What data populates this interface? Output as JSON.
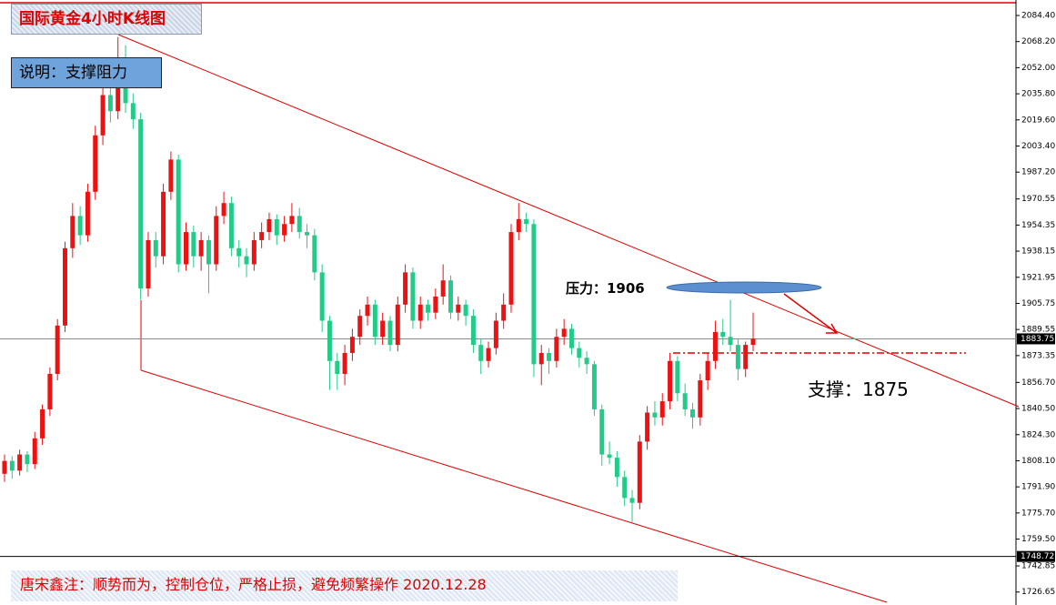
{
  "chart_data": {
    "type": "candlestick",
    "title": "国际黄金4小时K线图",
    "note": "说明：支撑阻力",
    "footer": "唐宋鑫注：顺势而为，控制仓位，严格止损，避免频繁操作  2020.12.28",
    "resistance": {
      "label": "压力：1906",
      "value": 1906
    },
    "support": {
      "label": "支撑：1875",
      "value": 1875
    },
    "last_price": 1883.75,
    "panel_line": 1748.72,
    "up_color": "#ee1111",
    "down_color": "#22cc88",
    "ylim": [
      1718.6,
      2094.0
    ],
    "yticks": [
      {
        "value": 2084.4,
        "label": "2084.40"
      },
      {
        "value": 2068.2,
        "label": "2068.20"
      },
      {
        "value": 2052,
        "label": "2052.00"
      },
      {
        "value": 2035.8,
        "label": "2035.80"
      },
      {
        "value": 2019.6,
        "label": "2019.60"
      },
      {
        "value": 2003.4,
        "label": "2003.40"
      },
      {
        "value": 1987.2,
        "label": "1987.20"
      },
      1970.55,
      1954.35,
      1938.15,
      1921.95,
      1905.75,
      1889.55,
      1873.35,
      {
        "value": 1856.7,
        "label": "1856.70"
      },
      {
        "value": 1840.5,
        "label": "1840.50"
      },
      {
        "value": 1824.3,
        "label": "1824.30"
      },
      {
        "value": 1808.1,
        "label": "1808.10"
      },
      {
        "value": 1791.9,
        "label": "1791.90"
      },
      {
        "value": 1775.7,
        "label": "1775.70"
      },
      {
        "value": 1759.5,
        "label": "1759.50"
      },
      1742.85,
      1726.65
    ],
    "ohlc": [
      [
        1800,
        1812,
        1795,
        1808
      ],
      [
        1808,
        1811,
        1797,
        1802
      ],
      [
        1802,
        1815,
        1799,
        1812
      ],
      [
        1812,
        1814,
        1801,
        1806
      ],
      [
        1806,
        1826,
        1803,
        1822
      ],
      [
        1822,
        1843,
        1818,
        1840
      ],
      [
        1840,
        1866,
        1836,
        1862
      ],
      [
        1862,
        1896,
        1858,
        1892
      ],
      [
        1892,
        1944,
        1888,
        1940
      ],
      [
        1940,
        1968,
        1934,
        1960
      ],
      [
        1960,
        1966,
        1942,
        1948
      ],
      [
        1948,
        1980,
        1944,
        1975
      ],
      [
        1975,
        2016,
        1970,
        2010
      ],
      [
        2010,
        2042,
        2004,
        2035
      ],
      [
        2035,
        2040,
        2018,
        2025
      ],
      [
        2025,
        2071,
        2020,
        2050
      ],
      [
        2050,
        2066,
        2024,
        2030
      ],
      [
        2030,
        2036,
        2014,
        2020
      ],
      [
        2020,
        2024,
        1908,
        1915
      ],
      [
        1915,
        1950,
        1910,
        1945
      ],
      [
        1945,
        1950,
        1928,
        1935
      ],
      [
        1935,
        1980,
        1930,
        1975
      ],
      [
        1975,
        2000,
        1970,
        1995
      ],
      [
        1995,
        1998,
        1925,
        1930
      ],
      [
        1930,
        1956,
        1926,
        1950
      ],
      [
        1950,
        1954,
        1928,
        1935
      ],
      [
        1935,
        1950,
        1926,
        1945
      ],
      [
        1945,
        1948,
        1912,
        1930
      ],
      [
        1930,
        1966,
        1926,
        1960
      ],
      [
        1960,
        1975,
        1955,
        1968
      ],
      [
        1968,
        1972,
        1935,
        1940
      ],
      [
        1940,
        1945,
        1928,
        1935
      ],
      [
        1935,
        1940,
        1922,
        1930
      ],
      [
        1930,
        1950,
        1926,
        1945
      ],
      [
        1945,
        1956,
        1940,
        1950
      ],
      [
        1950,
        1962,
        1945,
        1958
      ],
      [
        1958,
        1961,
        1942,
        1948
      ],
      [
        1948,
        1960,
        1944,
        1955
      ],
      [
        1955,
        1968,
        1950,
        1960
      ],
      [
        1960,
        1965,
        1946,
        1950
      ],
      [
        1950,
        1955,
        1940,
        1948
      ],
      [
        1948,
        1952,
        1920,
        1925
      ],
      [
        1925,
        1930,
        1888,
        1895
      ],
      [
        1895,
        1898,
        1852,
        1870
      ],
      [
        1870,
        1875,
        1852,
        1862
      ],
      [
        1862,
        1880,
        1855,
        1875
      ],
      [
        1875,
        1890,
        1870,
        1885
      ],
      [
        1885,
        1902,
        1880,
        1898
      ],
      [
        1898,
        1910,
        1892,
        1905
      ],
      [
        1905,
        1908,
        1880,
        1885
      ],
      [
        1885,
        1900,
        1880,
        1895
      ],
      [
        1895,
        1898,
        1876,
        1880
      ],
      [
        1880,
        1910,
        1876,
        1905
      ],
      [
        1905,
        1930,
        1900,
        1925
      ],
      [
        1925,
        1928,
        1890,
        1895
      ],
      [
        1895,
        1910,
        1890,
        1905
      ],
      [
        1905,
        1908,
        1895,
        1900
      ],
      [
        1900,
        1915,
        1896,
        1910
      ],
      [
        1910,
        1930,
        1905,
        1920
      ],
      [
        1920,
        1923,
        1896,
        1900
      ],
      [
        1900,
        1910,
        1895,
        1905
      ],
      [
        1905,
        1908,
        1892,
        1898
      ],
      [
        1898,
        1902,
        1875,
        1880
      ],
      [
        1880,
        1884,
        1862,
        1870
      ],
      [
        1870,
        1882,
        1866,
        1878
      ],
      [
        1878,
        1900,
        1874,
        1895
      ],
      [
        1895,
        1912,
        1890,
        1905
      ],
      [
        1905,
        1955,
        1900,
        1950
      ],
      [
        1950,
        1968,
        1945,
        1958
      ],
      [
        1958,
        1962,
        1950,
        1955
      ],
      [
        1955,
        1958,
        1860,
        1868
      ],
      [
        1868,
        1880,
        1855,
        1875
      ],
      [
        1875,
        1878,
        1862,
        1870
      ],
      [
        1870,
        1890,
        1866,
        1885
      ],
      [
        1885,
        1896,
        1880,
        1890
      ],
      [
        1890,
        1893,
        1874,
        1878
      ],
      [
        1878,
        1882,
        1866,
        1872
      ],
      [
        1872,
        1876,
        1862,
        1868
      ],
      [
        1868,
        1870,
        1836,
        1840
      ],
      [
        1840,
        1843,
        1805,
        1812
      ],
      [
        1812,
        1820,
        1806,
        1810
      ],
      [
        1810,
        1814,
        1792,
        1798
      ],
      [
        1798,
        1802,
        1780,
        1785
      ],
      [
        1785,
        1790,
        1770,
        1782
      ],
      [
        1782,
        1824,
        1778,
        1820
      ],
      [
        1820,
        1842,
        1815,
        1838
      ],
      [
        1838,
        1845,
        1830,
        1835
      ],
      [
        1835,
        1850,
        1830,
        1845
      ],
      [
        1845,
        1875,
        1840,
        1870
      ],
      [
        1870,
        1873,
        1845,
        1850
      ],
      [
        1850,
        1856,
        1836,
        1840
      ],
      [
        1840,
        1844,
        1828,
        1835
      ],
      [
        1835,
        1862,
        1830,
        1858
      ],
      [
        1858,
        1875,
        1852,
        1870
      ],
      [
        1870,
        1895,
        1865,
        1888
      ],
      [
        1888,
        1896,
        1880,
        1885
      ],
      [
        1885,
        1908,
        1876,
        1880
      ],
      [
        1880,
        1884,
        1858,
        1865
      ],
      [
        1865,
        1882,
        1860,
        1880
      ],
      [
        1880,
        1900,
        1876,
        1883.75
      ]
    ]
  }
}
